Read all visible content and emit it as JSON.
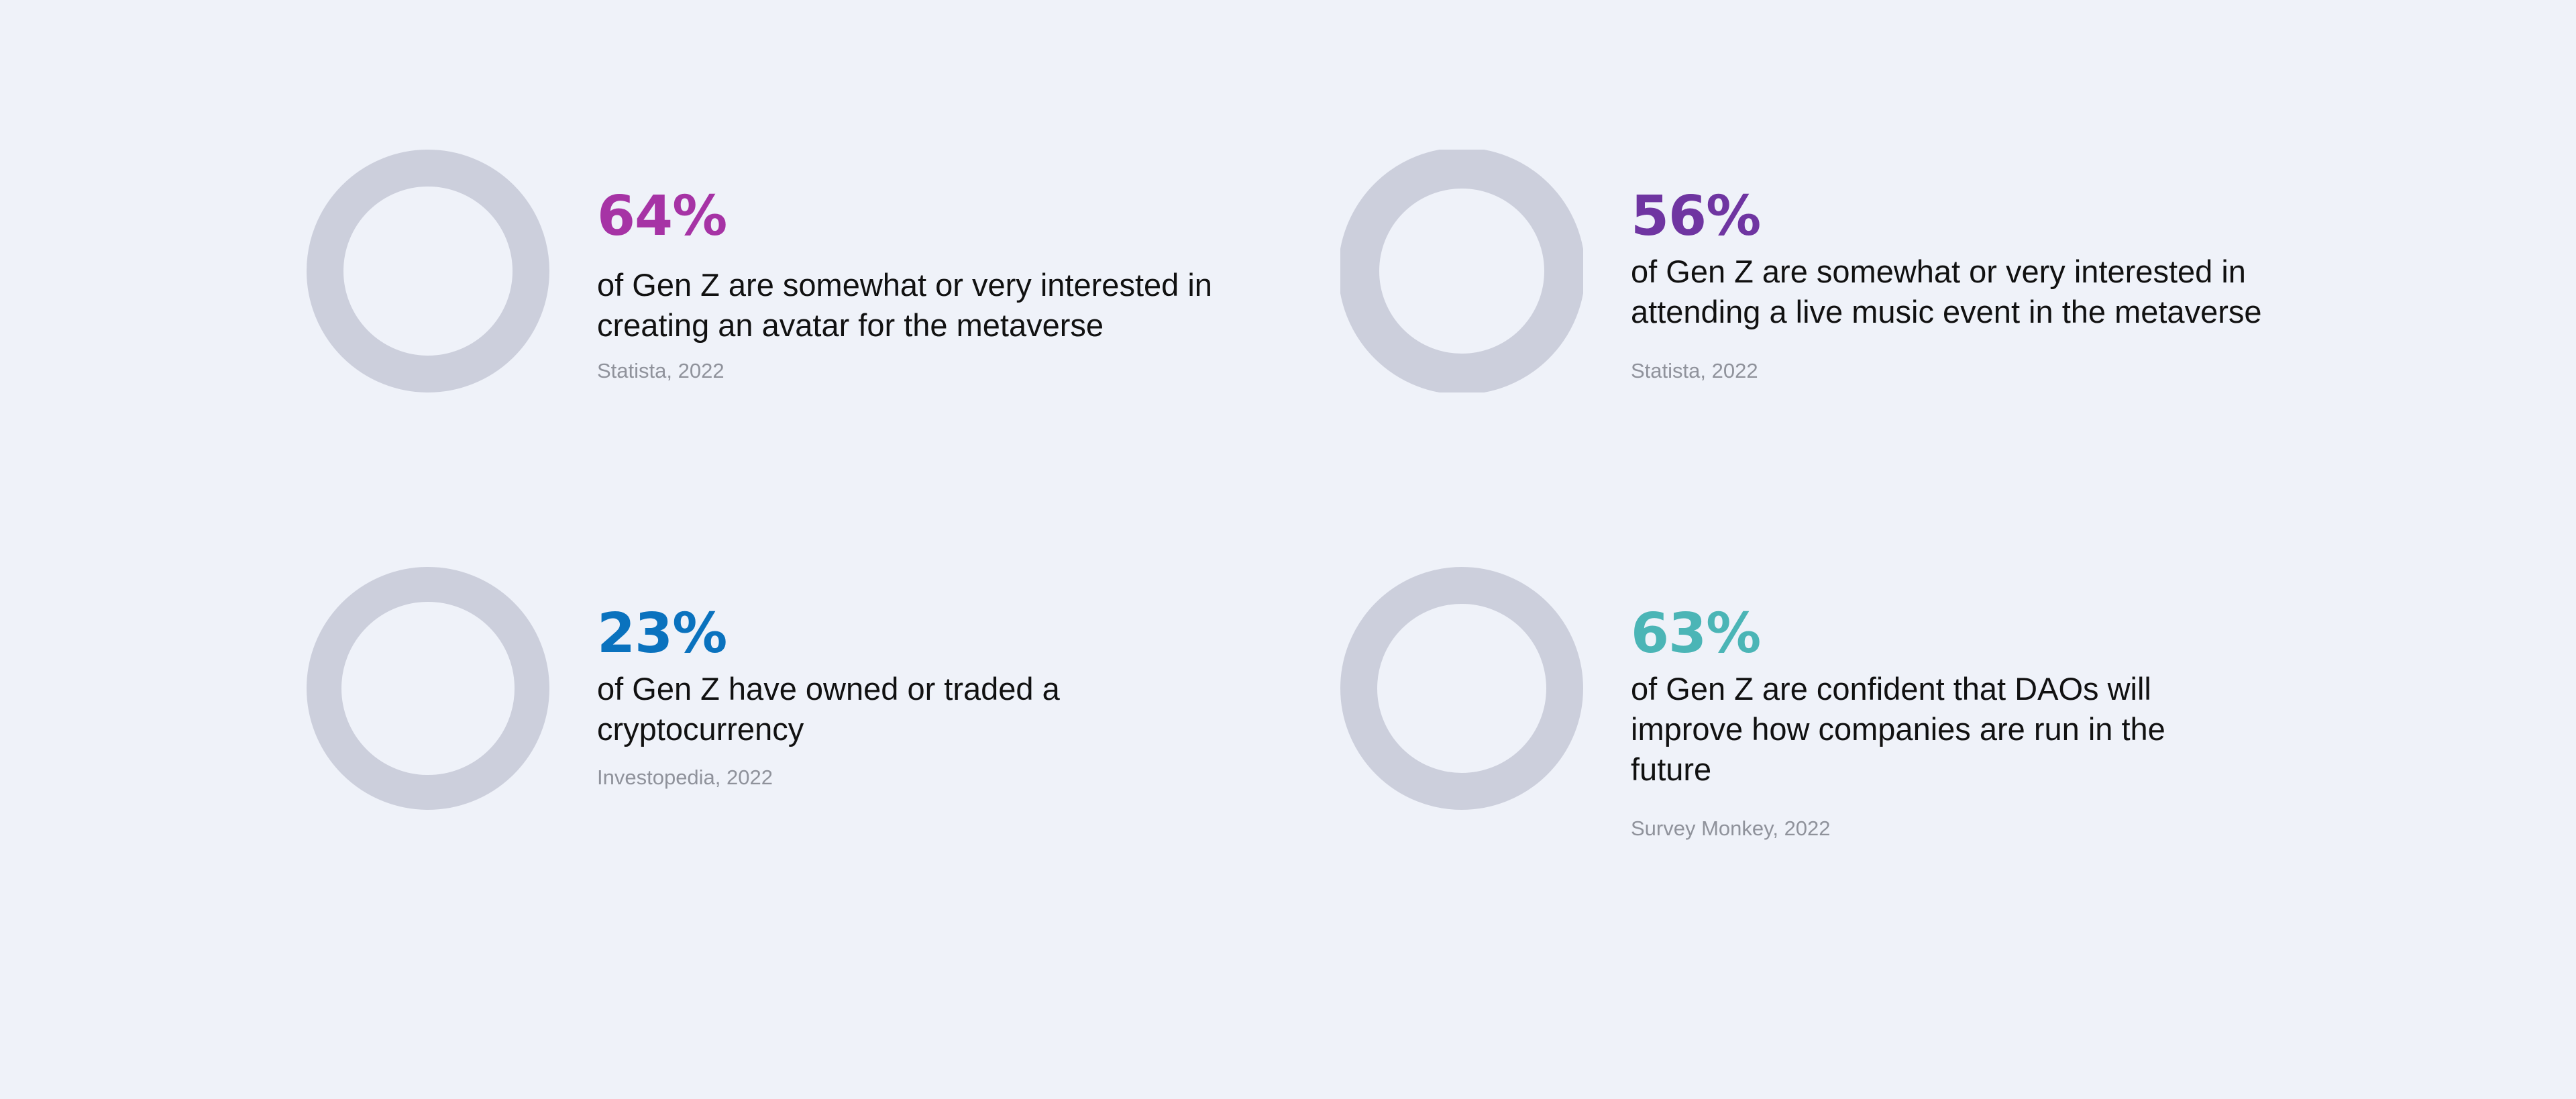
{
  "colors": {
    "background": "#eff2f9",
    "track": "#cccfdc"
  },
  "chart_data": [
    {
      "type": "pie",
      "value": 64,
      "percent_label": "64%",
      "description": "of Gen Z are somewhat or very interested in creating an avatar for the metaverse",
      "source": "Statista, 2022",
      "color": "#a633a5"
    },
    {
      "type": "pie",
      "value": 56,
      "percent_label": "56%",
      "description": "of Gen Z are somewhat or very interested in attending a live music event in the metaverse",
      "source": "Statista, 2022",
      "color": "#6f35a1"
    },
    {
      "type": "pie",
      "value": 23,
      "percent_label": "23%",
      "description": "of Gen Z have owned or traded a cryptocurrency",
      "source": "Investopedia, 2022",
      "color": "#0a72be"
    },
    {
      "type": "pie",
      "value": 63,
      "percent_label": "63%",
      "description": "of Gen Z are confident that DAOs will improve how companies are run in the future",
      "source": "Survey Monkey, 2022",
      "color": "#4bb5b6"
    }
  ]
}
